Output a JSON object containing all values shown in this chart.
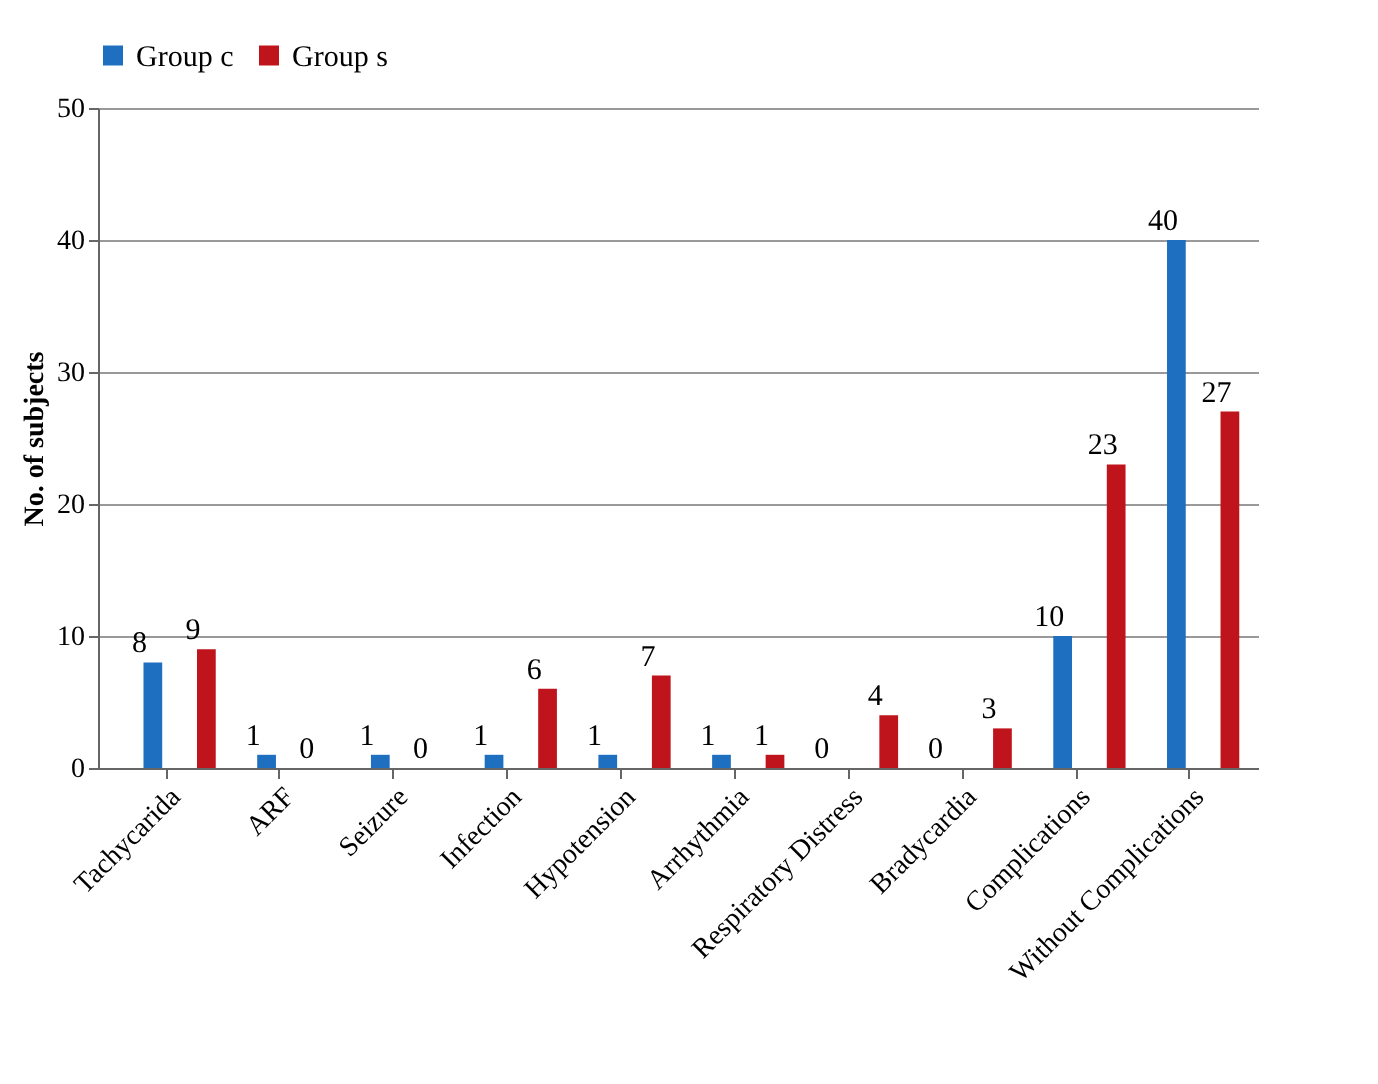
{
  "chart_data": {
    "type": "bar",
    "ylabel": "No. of subjects",
    "categories": [
      "Tachycarida",
      "ARF",
      "Seizure",
      "Infection",
      "Hypotension",
      "Arrhythmia",
      "Respiratory Distress",
      "Bradycardia",
      "Complications",
      "Without Complications"
    ],
    "series": [
      {
        "name": "Group c",
        "color": "#1f6fc0",
        "values": [
          8,
          1,
          1,
          1,
          1,
          1,
          0,
          0,
          10,
          40
        ]
      },
      {
        "name": "Group s",
        "color": "#c0141c",
        "values": [
          9,
          0,
          0,
          6,
          7,
          1,
          4,
          3,
          23,
          27
        ]
      }
    ],
    "ylim": [
      0,
      50
    ],
    "yticks": [
      0,
      10,
      20,
      30,
      40,
      50
    ],
    "grid": "y",
    "legend": "top",
    "data_labels": true
  }
}
